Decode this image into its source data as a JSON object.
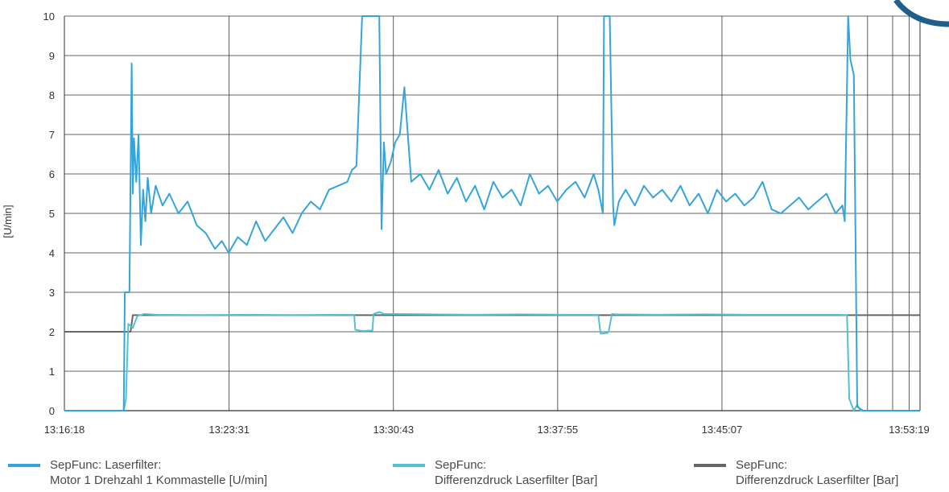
{
  "colors": {
    "series1": "#35a4dc",
    "series2": "#4fc3cf",
    "series3": "#666666",
    "grid": "#333333",
    "corner": "#1f5f8a"
  },
  "chart_data": {
    "type": "line",
    "ylabel": "[U/min]",
    "ylim": [
      0,
      10
    ],
    "yticks": [
      "0",
      "1",
      "2",
      "3",
      "4",
      "5",
      "6",
      "7",
      "8",
      "9",
      "10"
    ],
    "xticks": [
      "13:16:18",
      "13:23:31",
      "13:30:43",
      "13:37:55",
      "13:45:07",
      "13:53:19"
    ],
    "xtick_minutes": [
      0,
      7.22,
      14.42,
      21.62,
      28.82,
      37.02
    ],
    "xlim_minutes": [
      0,
      37.5
    ],
    "grid": true,
    "legend_position": "bottom",
    "series": [
      {
        "name_line1": "SepFunc: Laserfilter:",
        "name_line2": "Motor 1 Drehzahl 1 Kommastelle  [U/min]",
        "color": "#35a4dc",
        "x": [
          0,
          2.6,
          2.65,
          2.85,
          2.95,
          3.0,
          3.05,
          3.15,
          3.25,
          3.35,
          3.45,
          3.55,
          3.65,
          3.8,
          4.0,
          4.3,
          4.6,
          5.0,
          5.4,
          5.8,
          6.2,
          6.6,
          6.9,
          7.2,
          7.6,
          8.0,
          8.4,
          8.8,
          9.2,
          9.6,
          10.0,
          10.4,
          10.8,
          11.2,
          11.6,
          12.0,
          12.4,
          12.6,
          12.8,
          13.05,
          13.1,
          13.2,
          13.5,
          13.8,
          13.9,
          14.0,
          14.1,
          14.3,
          14.5,
          14.7,
          14.9,
          15.2,
          15.6,
          16.0,
          16.4,
          16.8,
          17.2,
          17.6,
          18.0,
          18.4,
          18.8,
          19.2,
          19.6,
          20.0,
          20.4,
          20.8,
          21.2,
          21.6,
          22.0,
          22.4,
          22.8,
          23.2,
          23.4,
          23.6,
          23.65,
          23.9,
          24.05,
          24.1,
          24.3,
          24.6,
          25.0,
          25.4,
          25.8,
          26.2,
          26.6,
          27.0,
          27.4,
          27.8,
          28.2,
          28.6,
          29.0,
          29.4,
          29.8,
          30.2,
          30.6,
          31.0,
          31.4,
          31.8,
          32.2,
          32.6,
          33.0,
          33.4,
          33.8,
          34.1,
          34.2,
          34.35,
          34.45,
          34.6,
          34.75,
          35.0,
          37.5
        ],
        "y": [
          0,
          0,
          3.0,
          3.0,
          8.8,
          5.5,
          6.9,
          5.8,
          7.0,
          4.2,
          5.6,
          4.8,
          5.9,
          5.0,
          5.7,
          5.2,
          5.5,
          5.0,
          5.3,
          4.7,
          4.5,
          4.1,
          4.3,
          4.0,
          4.4,
          4.2,
          4.8,
          4.3,
          4.6,
          4.9,
          4.5,
          5.0,
          5.3,
          5.1,
          5.6,
          5.7,
          5.8,
          6.1,
          6.2,
          10.0,
          10.0,
          10.0,
          10.0,
          10.0,
          4.6,
          6.8,
          6.0,
          6.3,
          6.8,
          7.0,
          8.2,
          5.8,
          6.0,
          5.6,
          6.1,
          5.5,
          5.9,
          5.3,
          5.7,
          5.1,
          5.8,
          5.4,
          5.6,
          5.2,
          6.0,
          5.5,
          5.7,
          5.3,
          5.6,
          5.8,
          5.4,
          6.0,
          5.6,
          5.0,
          10.0,
          10.0,
          5.2,
          4.7,
          5.3,
          5.6,
          5.2,
          5.7,
          5.4,
          5.6,
          5.3,
          5.7,
          5.2,
          5.5,
          5.0,
          5.6,
          5.3,
          5.5,
          5.2,
          5.4,
          5.8,
          5.1,
          5.0,
          5.2,
          5.4,
          5.1,
          5.3,
          5.5,
          5.0,
          5.2,
          4.8,
          10.0,
          8.9,
          8.5,
          0.1,
          0.0,
          0.0
        ]
      },
      {
        "name_line1": "SepFunc:",
        "name_line2": "Differenzdruck Laserfilter  [Bar]",
        "color": "#4fc3cf",
        "x": [
          0,
          2.6,
          2.7,
          2.8,
          3.0,
          3.2,
          3.5,
          4.0,
          6.0,
          8.0,
          10.0,
          12.0,
          12.7,
          12.75,
          13.05,
          13.1,
          13.5,
          13.55,
          13.8,
          13.9,
          14.0,
          16.0,
          18.0,
          20.0,
          22.0,
          23.4,
          23.5,
          23.8,
          23.85,
          24.0,
          24.1,
          26.0,
          28.0,
          30.0,
          32.0,
          34.0,
          34.3,
          34.4,
          34.6,
          34.75,
          34.9,
          37.5
        ],
        "y": [
          0,
          0,
          0.3,
          2.2,
          2.1,
          2.4,
          2.45,
          2.43,
          2.42,
          2.43,
          2.42,
          2.43,
          2.43,
          2.05,
          2.02,
          2.02,
          2.03,
          2.45,
          2.5,
          2.48,
          2.45,
          2.44,
          2.43,
          2.44,
          2.43,
          2.43,
          1.95,
          1.97,
          2.0,
          2.45,
          2.44,
          2.43,
          2.44,
          2.43,
          2.43,
          2.43,
          2.42,
          0.3,
          0.0,
          0.15,
          0.0,
          0.0
        ]
      },
      {
        "name_line1": "SepFunc:",
        "name_line2": "Differenzdruck Laserfilter  [Bar]",
        "color": "#666666",
        "x": [
          0,
          2.9,
          3.0,
          37.5
        ],
        "y": [
          2.0,
          2.0,
          2.42,
          2.42
        ]
      }
    ]
  }
}
